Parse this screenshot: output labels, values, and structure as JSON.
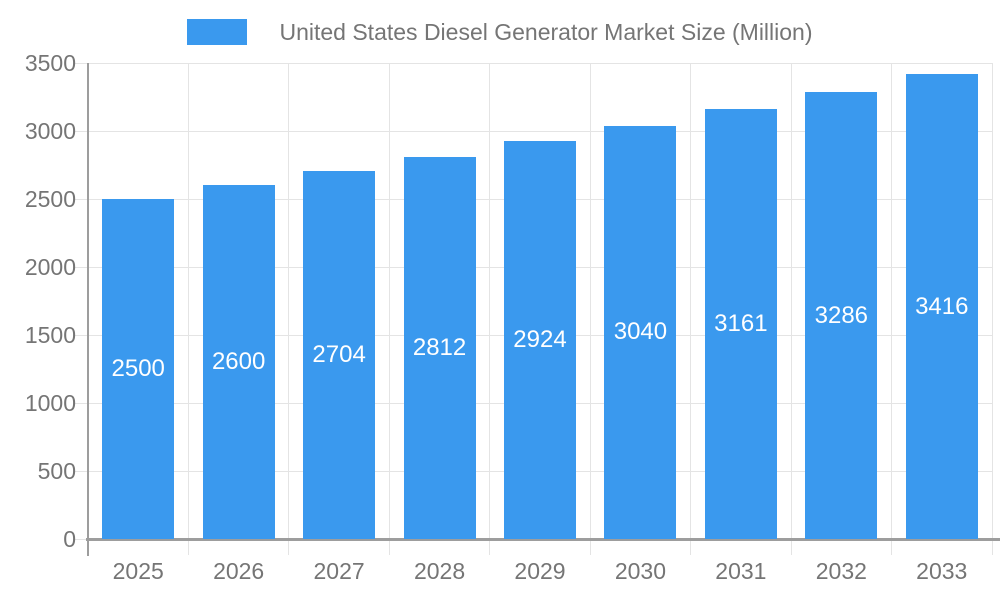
{
  "legend": {
    "label": "United States Diesel Generator Market Size (Million)"
  },
  "chart_data": {
    "type": "bar",
    "title": "United States Diesel Generator Market Size (Million)",
    "categories": [
      "2025",
      "2026",
      "2027",
      "2028",
      "2029",
      "2030",
      "2031",
      "2032",
      "2033"
    ],
    "values": [
      2500,
      2600,
      2704,
      2812,
      2924,
      3040,
      3161,
      3286,
      3416
    ],
    "xlabel": "",
    "ylabel": "",
    "ylim": [
      0,
      3500
    ],
    "ytick_step": 500,
    "ytick_labels": [
      "0",
      "500",
      "1000",
      "1500",
      "2000",
      "2500",
      "3000",
      "3500"
    ],
    "grid": true,
    "legend_position": "top-center",
    "value_labels": "inside-center",
    "colors": {
      "bar_fill": "#3A99EE",
      "value_label_text": "#ffffff",
      "axis_text": "#757575",
      "grid_line": "#e4e4e4",
      "axis_line": "#9d9d9d",
      "background": "#ffffff"
    }
  }
}
